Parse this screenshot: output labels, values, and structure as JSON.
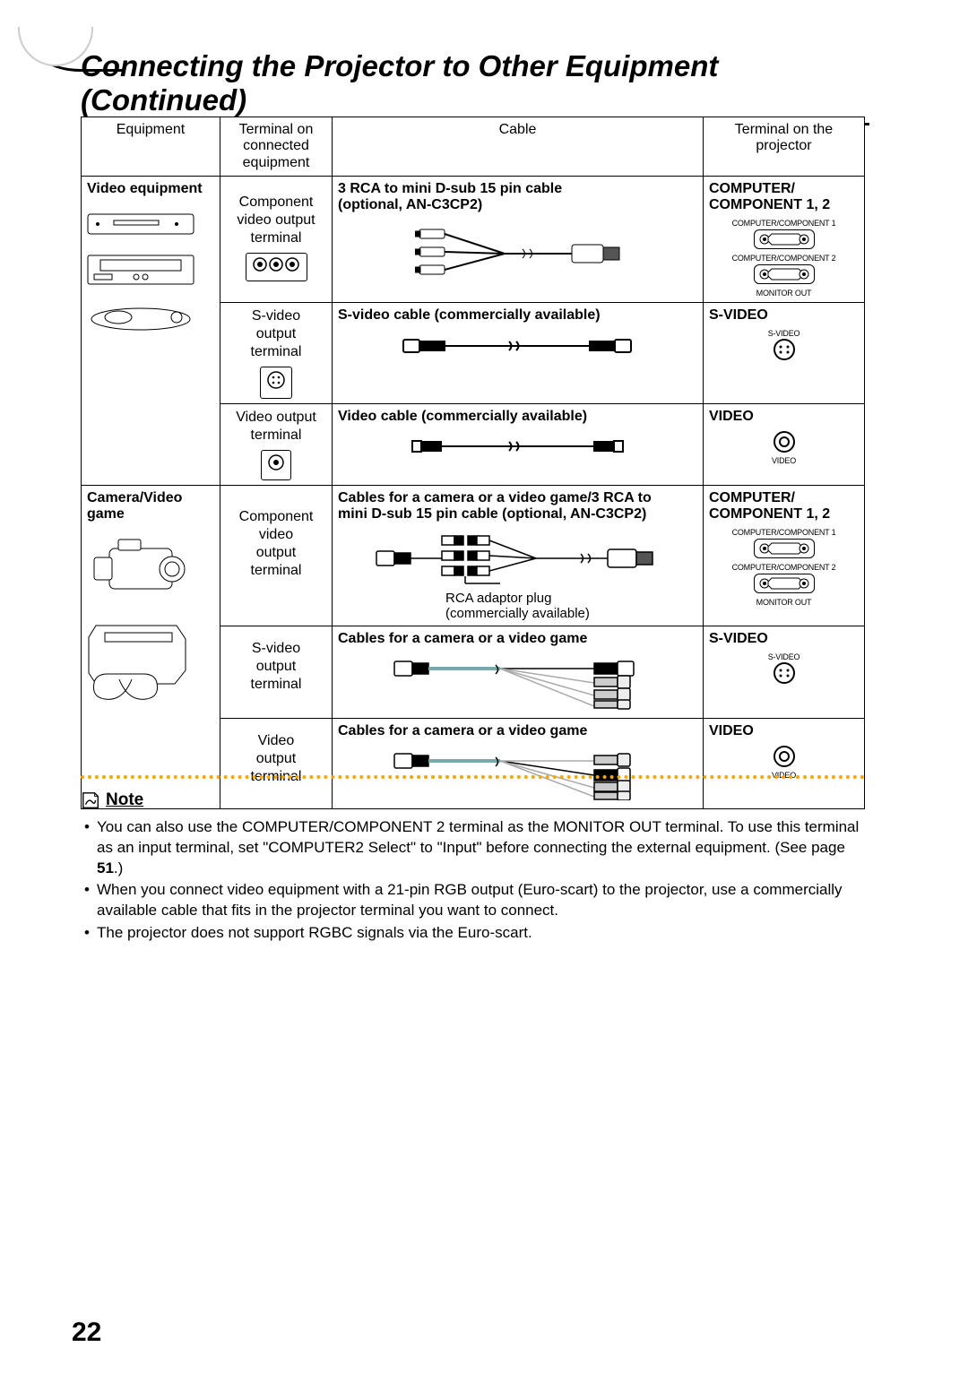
{
  "title": "Connecting the Projector to Other Equipment (Continued)",
  "headers": {
    "equipment": "Equipment",
    "terminal_eq": "Terminal on\nconnected equipment",
    "cable": "Cable",
    "terminal_proj": "Terminal on the\nprojector"
  },
  "rows": {
    "video_equipment": {
      "label": "Video equipment",
      "r1": {
        "term": "Component\nvideo output\nterminal",
        "cable": "3 RCA to mini D-sub 15 pin cable\n(optional, AN-C3CP2)",
        "proj": "COMPUTER/\nCOMPONENT 1, 2",
        "port1": "COMPUTER/COMPONENT 1",
        "port2": "COMPUTER/COMPONENT 2",
        "port3": "MONITOR OUT"
      },
      "r2": {
        "term": "S-video\noutput\nterminal",
        "cable": "S-video cable (commercially available)",
        "proj": "S-VIDEO",
        "port1": "S-VIDEO"
      },
      "r3": {
        "term": "Video output\nterminal",
        "cable": "Video cable (commercially available)",
        "proj": "VIDEO",
        "port1": "VIDEO"
      }
    },
    "camera": {
      "label": "Camera/Video game",
      "r1": {
        "term": "Component\nvideo\noutput\nterminal",
        "cable": "Cables for a camera or a video game/3 RCA to\nmini D-sub 15 pin cable (optional, AN-C3CP2)",
        "note1": "RCA adaptor plug",
        "note2": "(commercially available)",
        "proj": "COMPUTER/\nCOMPONENT 1, 2",
        "port1": "COMPUTER/COMPONENT 1",
        "port2": "COMPUTER/COMPONENT 2",
        "port3": "MONITOR OUT"
      },
      "r2": {
        "term": "S-video\noutput\nterminal",
        "cable": "Cables for a camera or a video game",
        "proj": "S-VIDEO",
        "port1": "S-VIDEO"
      },
      "r3": {
        "term": "Video\noutput\nterminal",
        "cable": "Cables for a camera or a video game",
        "proj": "VIDEO",
        "port1": "VIDEO"
      }
    }
  },
  "note": {
    "header": "Note",
    "items": [
      "You can also use the COMPUTER/COMPONENT 2 terminal as the MONITOR OUT terminal. To use this terminal as an input terminal, set \"COMPUTER2 Select\" to \"Input\" before connecting the external equipment. (See page 51.)",
      "When you connect video equipment with a 21-pin RGB output (Euro-scart) to the projector, use a commercially available cable that fits in the projector terminal you want to connect.",
      "The projector does not support RGBC signals via the Euro-scart."
    ],
    "page_ref": "51"
  },
  "page_number": "22",
  "colors": {
    "accent": "#f7a600",
    "text": "#000000",
    "bg": "#ffffff"
  }
}
